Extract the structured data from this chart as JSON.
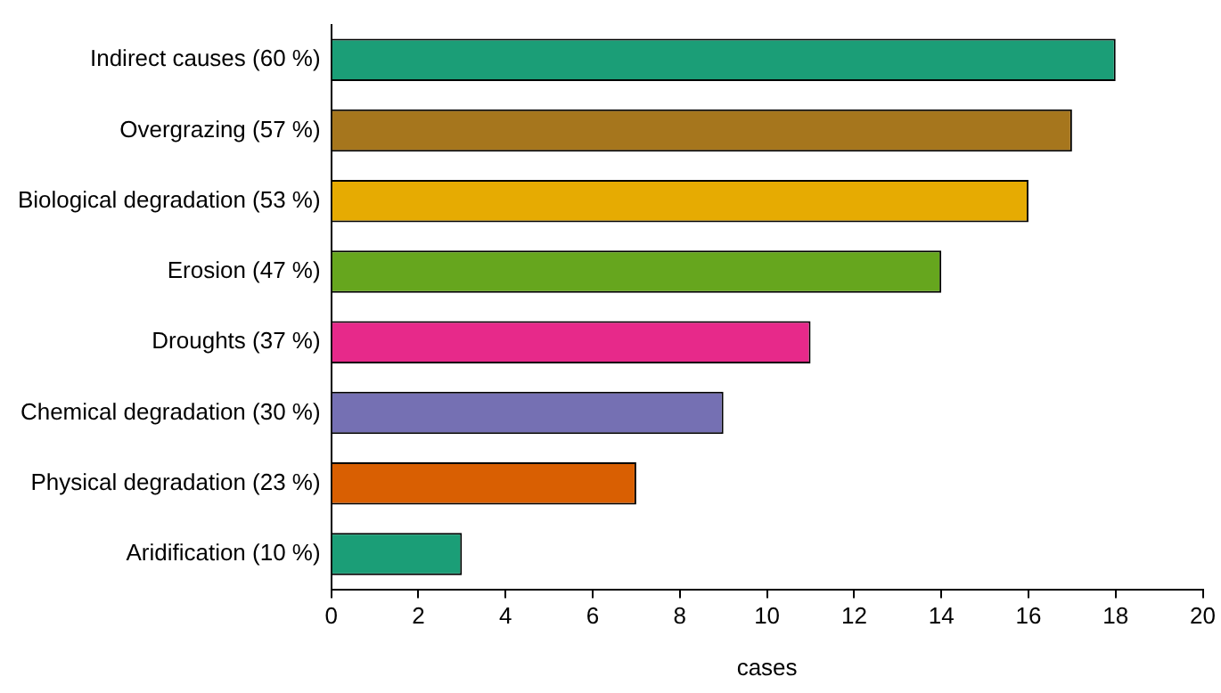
{
  "chart_data": {
    "type": "bar",
    "orientation": "horizontal",
    "xlabel": "cases",
    "categories": [
      "Indirect causes (60 %)",
      "Overgrazing (57 %)",
      "Biological degradation (53 %)",
      "Erosion (47 %)",
      "Droughts (37 %)",
      "Chemical degradation (30 %)",
      "Physical degradation (23 %)",
      "Aridification (10 %)"
    ],
    "values": [
      18,
      17,
      16,
      14,
      11,
      9,
      7,
      3
    ],
    "colors": [
      "#1b9e77",
      "#a6761d",
      "#e6ab02",
      "#66a61e",
      "#e7298a",
      "#7570b3",
      "#d95f02",
      "#1b9e77"
    ],
    "xlim": [
      0,
      20
    ],
    "xticks": [
      0,
      2,
      4,
      6,
      8,
      10,
      12,
      14,
      16,
      18,
      20
    ],
    "grid": false,
    "legend": false
  }
}
